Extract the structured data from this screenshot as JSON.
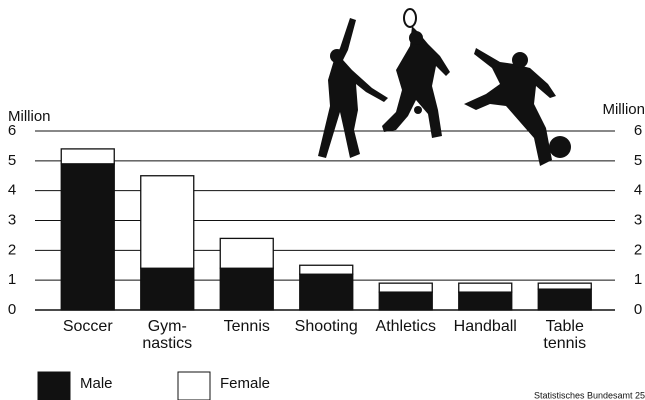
{
  "chart_data": {
    "type": "stacked-bar",
    "y_label": "Million",
    "y2_label": "Million",
    "categories": [
      "Soccer",
      "Gym-\nnastics",
      "Tennis",
      "Shooting",
      "Athletics",
      "Handball",
      "Table\ntennis"
    ],
    "series": [
      {
        "name": "Male",
        "color": "#111111",
        "values": [
          4.9,
          1.4,
          1.4,
          1.2,
          0.6,
          0.6,
          0.7
        ]
      },
      {
        "name": "Female",
        "color": "#ffffff",
        "values": [
          0.5,
          3.1,
          1.0,
          0.3,
          0.3,
          0.3,
          0.2
        ]
      }
    ],
    "ylim": [
      0,
      6
    ],
    "yticks": [
      0,
      1,
      2,
      3,
      4,
      5,
      6
    ],
    "y2lim": [
      0,
      6
    ],
    "y2ticks": [
      0,
      1,
      2,
      3,
      4,
      5,
      6
    ],
    "grid": true,
    "source": "Statistisches Bundesamt 25"
  }
}
